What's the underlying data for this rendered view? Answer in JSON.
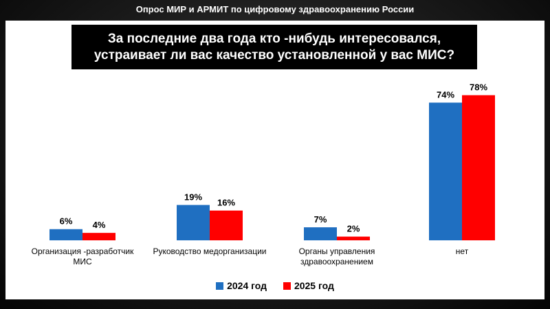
{
  "header": "Опрос МИР и АРМИТ по цифровому здравоохранению России",
  "question": {
    "line1": "За последние два года кто -нибудь интересовался,",
    "line2": "устраивает ли вас качество установленной у вас МИС?"
  },
  "colors": {
    "series_2024": "#1f6fc1",
    "series_2025": "#ff0000"
  },
  "chart_data": {
    "type": "bar",
    "categories": [
      [
        "Организация -разработчик",
        "МИС"
      ],
      [
        "Руководство медорганизации"
      ],
      [
        "Органы управления",
        "здравоохранением"
      ],
      [
        "нет"
      ]
    ],
    "series": [
      {
        "name": "2024 год",
        "values": [
          6,
          19,
          7,
          74
        ],
        "labels": [
          "6%",
          "19%",
          "7%",
          "74%"
        ]
      },
      {
        "name": "2025 год",
        "values": [
          4,
          16,
          2,
          78
        ],
        "labels": [
          "4%",
          "16%",
          "2%",
          "78%"
        ]
      }
    ],
    "ylim": [
      0,
      100
    ],
    "grid": false,
    "legend_position": "bottom"
  }
}
